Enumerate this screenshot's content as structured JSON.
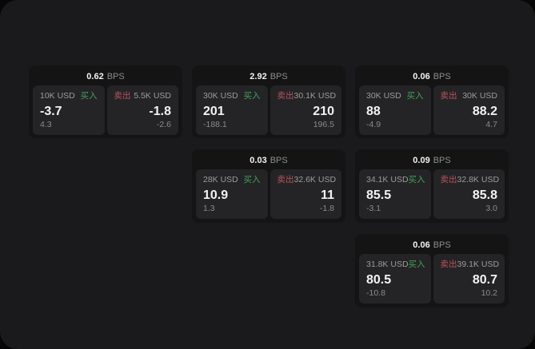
{
  "labels": {
    "unit": "BPS",
    "buy": "买入",
    "sell": "卖出"
  },
  "colors": {
    "page_background": "#1a1a1c",
    "card_background": "#141414",
    "panel_background": "#242426",
    "primary_text": "#f3f3f3",
    "muted_text": "#8d8d8d",
    "buy_green": "#41a25c",
    "sell_red": "#b9535f"
  },
  "cards": [
    {
      "row": 0,
      "col": 0,
      "bps": "0.62",
      "buy": {
        "amount": "10K USD",
        "value": "-3.7",
        "delta": "4.3"
      },
      "sell": {
        "amount": "5.5K USD",
        "value": "-1.8",
        "delta": "-2.6"
      }
    },
    {
      "row": 0,
      "col": 1,
      "bps": "2.92",
      "buy": {
        "amount": "30K USD",
        "value": "201",
        "delta": "-188.1"
      },
      "sell": {
        "amount": "30.1K USD",
        "value": "210",
        "delta": "196.5"
      }
    },
    {
      "row": 0,
      "col": 2,
      "bps": "0.06",
      "buy": {
        "amount": "30K USD",
        "value": "88",
        "delta": "-4.9"
      },
      "sell": {
        "amount": "30K USD",
        "value": "88.2",
        "delta": "4.7"
      }
    },
    {
      "row": 1,
      "col": 1,
      "bps": "0.03",
      "buy": {
        "amount": "28K USD",
        "value": "10.9",
        "delta": "1.3"
      },
      "sell": {
        "amount": "32.6K USD",
        "value": "11",
        "delta": "-1.8"
      }
    },
    {
      "row": 1,
      "col": 2,
      "bps": "0.09",
      "buy": {
        "amount": "34.1K USD",
        "value": "85.5",
        "delta": "-3.1"
      },
      "sell": {
        "amount": "32.8K USD",
        "value": "85.8",
        "delta": "3.0"
      }
    },
    {
      "row": 2,
      "col": 2,
      "bps": "0.06",
      "buy": {
        "amount": "31.8K USD",
        "value": "80.5",
        "delta": "-10.8"
      },
      "sell": {
        "amount": "39.1K USD",
        "value": "80.7",
        "delta": "10.2"
      }
    }
  ]
}
